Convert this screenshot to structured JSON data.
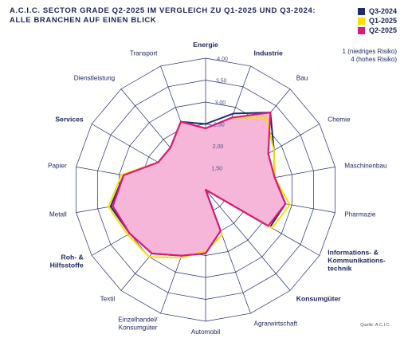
{
  "title_line1": "A.C.I.C. SECTOR GRADE Q2-2025 IM VERGLEICH ZU Q1-2025 UND Q3-2024:",
  "title_line2": "ALLE BRANCHEN AUF EINEN BLICK",
  "legend": [
    {
      "label": "Q3-2024",
      "color": "#1d2a6b"
    },
    {
      "label": "Q1-2025",
      "color": "#f5e000"
    },
    {
      "label": "Q2-2025",
      "color": "#d81b7c"
    }
  ],
  "scale_note": [
    "1 (niedriges Risiko)",
    "4 (hohes Risiko)"
  ],
  "source": "Quelle: A.C.I.C.",
  "chart_data": {
    "type": "radar",
    "rmin": 1.0,
    "rmax": 4.0,
    "ticks": [
      "1,50",
      "2,00",
      "2,50",
      "3,00",
      "3,50",
      "4,00"
    ],
    "tick_values": [
      1.5,
      2.0,
      2.5,
      3.0,
      3.5,
      4.0
    ],
    "categories": [
      "Energie",
      "Industrie",
      "Bau",
      "Chemie",
      "Maschinenbau",
      "Pharmazie",
      "Informations- & Kommunikations-technik",
      "Konsumgüter",
      "Agrarwirtschaft",
      "Automobil",
      "Einzelhandel/ Konsumgüter",
      "Textil",
      "Roh- & Hilfsstoffe",
      "Metall",
      "Papier",
      "Services",
      "Dienstleistung",
      "Transport"
    ],
    "bold_categories": [
      "Energie",
      "Industrie",
      "Informations- & Kommunikations-technik",
      "Konsumgüter",
      "Roh- & Hilfsstoffe",
      "Services"
    ],
    "series": [
      {
        "name": "Q3-2024",
        "color": "#1d2a6b",
        "values": [
          2.5,
          2.85,
          3.3,
          2.8,
          2.6,
          2.85,
          2.7,
          1.0,
          2.0,
          2.45,
          2.6,
          2.9,
          3.0,
          3.2,
          2.9,
          2.25,
          2.25,
          2.65
        ]
      },
      {
        "name": "Q1-2025",
        "color": "#f5e000",
        "values": [
          2.4,
          2.75,
          3.15,
          2.8,
          2.6,
          2.95,
          2.75,
          1.0,
          2.1,
          2.4,
          2.65,
          3.0,
          3.05,
          3.25,
          2.95,
          2.25,
          2.25,
          2.65
        ]
      },
      {
        "name": "Q2-2025",
        "color": "#d81b7c",
        "values": [
          2.4,
          2.75,
          3.3,
          2.65,
          2.6,
          2.85,
          2.65,
          1.0,
          2.0,
          2.45,
          2.6,
          2.9,
          3.0,
          3.15,
          2.9,
          2.25,
          2.25,
          2.65
        ]
      }
    ],
    "fill_series": "Q2-2025",
    "fill_color": "#f6b6d9",
    "grid": true
  }
}
